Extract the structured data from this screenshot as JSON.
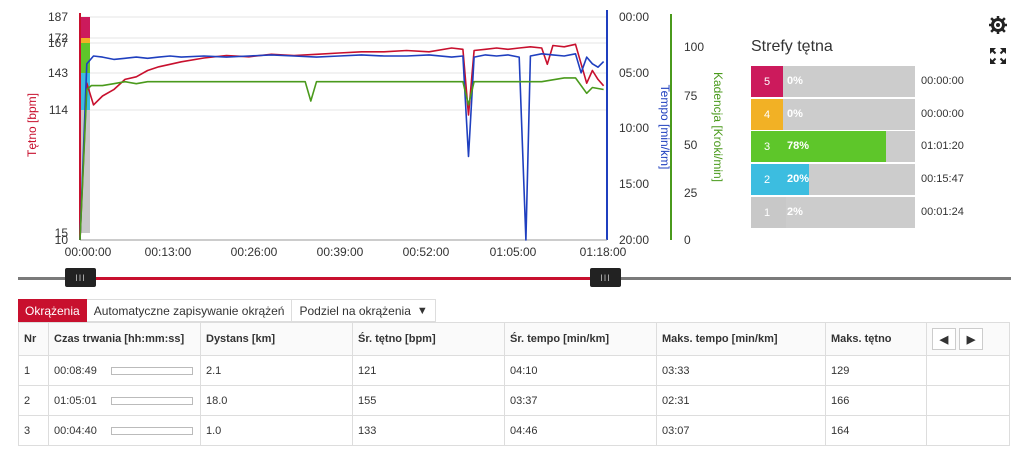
{
  "chart_data": {
    "type": "line",
    "x_ticks": [
      "00:00:00",
      "00:13:00",
      "00:26:00",
      "00:39:00",
      "00:52:00",
      "01:05:00",
      "01:18:00"
    ],
    "xlim_seconds": [
      0,
      4680
    ],
    "y_axes": {
      "heart_rate": {
        "label": "Tętno [bpm]",
        "ticks": [
          "187",
          "172",
          "167",
          "143",
          "114",
          "15",
          "10"
        ],
        "color": "#c8102e"
      },
      "pace": {
        "label": "Tempo [min/km]",
        "ticks": [
          "00:00",
          "05:00",
          "10:00",
          "15:00",
          "20:00"
        ],
        "color": "#1f3fbf"
      },
      "cadence": {
        "label": "Kadencja [Kroki/min]",
        "ticks": [
          "100",
          "75",
          "50",
          "25",
          "0"
        ],
        "color": "#4a9a1c"
      }
    },
    "series": [
      {
        "name": "Tętno [bpm]",
        "color": "#c8102e",
        "x": [
          0,
          60,
          120,
          200,
          300,
          400,
          500,
          600,
          700,
          800,
          900,
          1100,
          1300,
          1500,
          1700,
          1900,
          2100,
          2300,
          2500,
          2700,
          2900,
          3100,
          3300,
          3400,
          3450,
          3500,
          3600,
          3700,
          3800,
          3900,
          4000,
          4100,
          4150,
          4200,
          4300,
          4400,
          4500,
          4550,
          4600,
          4650
        ],
        "y": [
          10,
          135,
          118,
          125,
          130,
          138,
          140,
          145,
          148,
          150,
          152,
          155,
          157,
          156,
          158,
          157,
          158,
          159,
          160,
          160,
          161,
          160,
          163,
          162,
          110,
          161,
          162,
          163,
          162,
          163,
          164,
          163,
          150,
          165,
          164,
          166,
          135,
          145,
          138,
          133
        ]
      },
      {
        "name": "Tempo [min/km]",
        "color": "#1f3fbf",
        "x": [
          0,
          60,
          120,
          200,
          300,
          400,
          500,
          600,
          700,
          800,
          900,
          1100,
          1300,
          1500,
          1700,
          1900,
          2100,
          2300,
          2500,
          2700,
          2900,
          3100,
          3300,
          3400,
          3450,
          3500,
          3600,
          3700,
          3800,
          3900,
          3960,
          4000,
          4100,
          4200,
          4300,
          4400,
          4450,
          4500,
          4550,
          4600,
          4650
        ],
        "y": [
          20,
          4.2,
          3.5,
          3.6,
          3.8,
          3.7,
          3.6,
          3.7,
          3.6,
          3.5,
          3.6,
          3.5,
          3.6,
          3.5,
          3.4,
          3.5,
          3.6,
          3.5,
          3.4,
          3.5,
          3.5,
          3.4,
          3.6,
          3.5,
          12.5,
          3.6,
          3.4,
          3.5,
          3.4,
          3.6,
          20,
          3.5,
          3.3,
          3.4,
          3.5,
          3.3,
          5,
          3.6,
          4.2,
          4.5,
          4.0
        ]
      },
      {
        "name": "Kadencja [Kroki/min]",
        "color": "#4a9a1c",
        "x": [
          0,
          60,
          100,
          200,
          300,
          400,
          500,
          600,
          800,
          1000,
          1200,
          1400,
          1600,
          1800,
          2000,
          2050,
          2100,
          2300,
          2500,
          2700,
          2900,
          3100,
          3300,
          3400,
          3450,
          3500,
          3700,
          3900,
          4100,
          4200,
          4300,
          4400,
          4500,
          4550,
          4650
        ],
        "y": [
          0,
          78,
          80,
          80,
          81,
          82,
          81,
          82,
          82,
          82,
          82,
          82,
          82,
          82,
          82,
          72,
          82,
          82,
          82,
          82,
          82,
          82,
          82,
          82,
          70,
          82,
          82,
          82,
          82,
          83,
          84,
          84,
          76,
          79,
          78
        ]
      }
    ],
    "hr_zone_bands": {
      "colors": [
        "#cc1a5c",
        "#f2b125",
        "#5ec62a",
        "#3cbde0",
        "#c8c8c8"
      ],
      "bounds": [
        187,
        172,
        167,
        143,
        114,
        15
      ]
    }
  },
  "toolbar": {
    "settings_icon": "gear-icon",
    "fullscreen_icon": "expand-icon"
  },
  "zones": {
    "title": "Strefy tętna",
    "rows": [
      {
        "num": "5",
        "pct": "0%",
        "fraction": 0.0,
        "time": "00:00:00",
        "color": "#cc1a5c"
      },
      {
        "num": "4",
        "pct": "0%",
        "fraction": 0.0,
        "time": "00:00:00",
        "color": "#f2b125"
      },
      {
        "num": "3",
        "pct": "78%",
        "fraction": 0.78,
        "time": "01:01:20",
        "color": "#5ec62a"
      },
      {
        "num": "2",
        "pct": "20%",
        "fraction": 0.2,
        "time": "00:15:47",
        "color": "#3cbde0"
      },
      {
        "num": "1",
        "pct": "2%",
        "fraction": 0.02,
        "time": "00:01:24",
        "color": "#c8c8c8"
      }
    ]
  },
  "slider": {
    "handle_label": "III",
    "start_fraction": 0.0,
    "end_fraction": 1.0
  },
  "tabs": {
    "laps": "Okrążenia",
    "auto_save": "Automatyczne zapisywanie okrążeń",
    "split": "Podziel na okrążenia"
  },
  "table": {
    "headers": [
      "Nr",
      "Czas trwania [hh:mm:ss]",
      "Dystans [km]",
      "Śr. tętno [bpm]",
      "Śr. tempo [min/km]",
      "Maks. tempo [min/km]",
      "Maks. tętno"
    ],
    "rows": [
      {
        "nr": "1",
        "duration": "00:08:49",
        "distance": "2.1",
        "avg_hr": "121",
        "avg_pace": "04:10",
        "max_pace": "03:33",
        "max_hr": "129"
      },
      {
        "nr": "2",
        "duration": "01:05:01",
        "distance": "18.0",
        "avg_hr": "155",
        "avg_pace": "03:37",
        "max_pace": "02:31",
        "max_hr": "166"
      },
      {
        "nr": "3",
        "duration": "00:04:40",
        "distance": "1.0",
        "avg_hr": "133",
        "avg_pace": "04:46",
        "max_pace": "03:07",
        "max_hr": "164"
      }
    ]
  }
}
